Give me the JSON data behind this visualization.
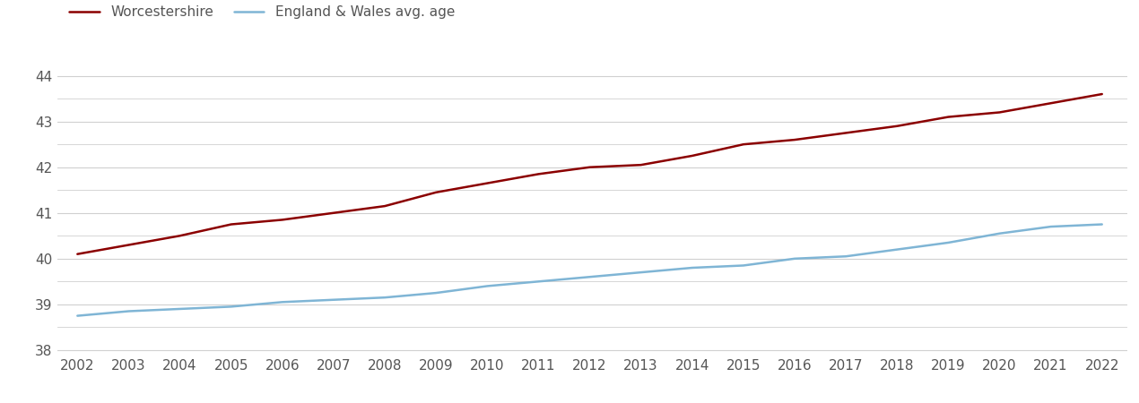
{
  "years": [
    2002,
    2003,
    2004,
    2005,
    2006,
    2007,
    2008,
    2009,
    2010,
    2011,
    2012,
    2013,
    2014,
    2015,
    2016,
    2017,
    2018,
    2019,
    2020,
    2021,
    2022
  ],
  "worcestershire": [
    40.1,
    40.3,
    40.5,
    40.75,
    40.85,
    41.0,
    41.15,
    41.45,
    41.65,
    41.85,
    42.0,
    42.05,
    42.25,
    42.5,
    42.6,
    42.75,
    42.9,
    43.1,
    43.2,
    43.4,
    43.6
  ],
  "england_wales": [
    38.75,
    38.85,
    38.9,
    38.95,
    39.05,
    39.1,
    39.15,
    39.25,
    39.4,
    39.5,
    39.6,
    39.7,
    39.8,
    39.85,
    40.0,
    40.05,
    40.2,
    40.35,
    40.55,
    40.7,
    40.75
  ],
  "worcestershire_color": "#8B0000",
  "england_wales_color": "#7FB5D5",
  "worcestershire_label": "Worcestershire",
  "england_wales_label": "England & Wales avg. age",
  "ylim": [
    37.9,
    44.6
  ],
  "yticks": [
    38,
    39,
    40,
    41,
    42,
    43,
    44
  ],
  "yticks_minor": [
    38.5,
    39.5,
    40.5,
    41.5,
    42.5,
    43.5
  ],
  "background_color": "#ffffff",
  "grid_color": "#d0d0d0",
  "line_width": 1.8,
  "font_size": 11,
  "tick_label_color": "#555555"
}
